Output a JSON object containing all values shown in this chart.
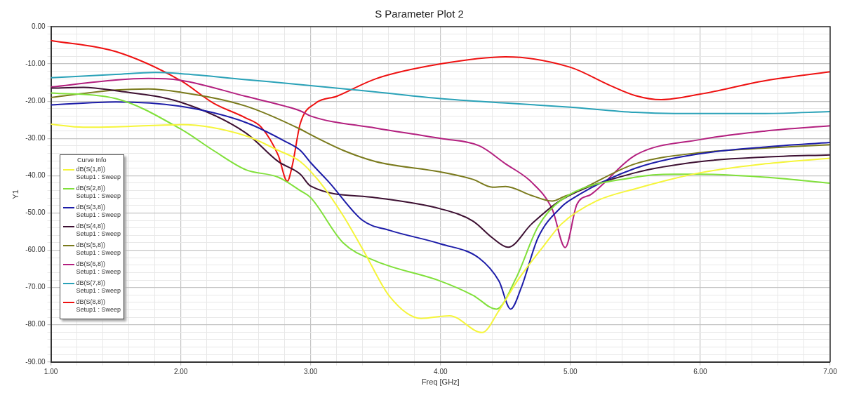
{
  "chart_data": {
    "type": "line",
    "title": "S Parameter Plot 2",
    "xlabel": "Freq [GHz]",
    "ylabel": "Y1",
    "legend_title": "Curve Info",
    "legend": "left",
    "grid": true,
    "marker": "none",
    "line_style": "solid",
    "xlim": [
      1,
      7
    ],
    "xticks": [
      {
        "value": 1,
        "label": "1.00"
      },
      {
        "value": 1.2,
        "label": null
      },
      {
        "value": 1.4,
        "label": null
      },
      {
        "value": 1.6,
        "label": null
      },
      {
        "value": 1.8,
        "label": null
      },
      {
        "value": 2,
        "label": "2.00"
      },
      {
        "value": 2.2,
        "label": null
      },
      {
        "value": 2.4,
        "label": null
      },
      {
        "value": 2.6,
        "label": null
      },
      {
        "value": 2.8,
        "label": null
      },
      {
        "value": 3,
        "label": "3.00"
      },
      {
        "value": 3.2,
        "label": null
      },
      {
        "value": 3.4,
        "label": null
      },
      {
        "value": 3.6,
        "label": null
      },
      {
        "value": 3.8,
        "label": null
      },
      {
        "value": 4,
        "label": "4.00"
      },
      {
        "value": 4.2,
        "label": null
      },
      {
        "value": 4.4,
        "label": null
      },
      {
        "value": 4.6,
        "label": null
      },
      {
        "value": 4.8,
        "label": null
      },
      {
        "value": 5,
        "label": "5.00"
      },
      {
        "value": 5.2,
        "label": null
      },
      {
        "value": 5.4,
        "label": null
      },
      {
        "value": 5.6,
        "label": null
      },
      {
        "value": 5.8,
        "label": null
      },
      {
        "value": 6,
        "label": "6.00"
      },
      {
        "value": 6.2,
        "label": null
      },
      {
        "value": 6.4,
        "label": null
      },
      {
        "value": 6.6,
        "label": null
      },
      {
        "value": 6.8,
        "label": null
      },
      {
        "value": 7,
        "label": "7.00"
      }
    ],
    "ylim": [
      -90,
      0
    ],
    "yticks": [
      {
        "value": -90,
        "label": "-90.00"
      },
      {
        "value": -88,
        "label": null
      },
      {
        "value": -86,
        "label": null
      },
      {
        "value": -84,
        "label": null
      },
      {
        "value": -82,
        "label": null
      },
      {
        "value": -80,
        "label": "-80.00"
      },
      {
        "value": -78,
        "label": null
      },
      {
        "value": -76,
        "label": null
      },
      {
        "value": -74,
        "label": null
      },
      {
        "value": -72,
        "label": null
      },
      {
        "value": -70,
        "label": "-70.00"
      },
      {
        "value": -68,
        "label": null
      },
      {
        "value": -66,
        "label": null
      },
      {
        "value": -64,
        "label": null
      },
      {
        "value": -62,
        "label": null
      },
      {
        "value": -60,
        "label": "-60.00"
      },
      {
        "value": -58,
        "label": null
      },
      {
        "value": -56,
        "label": null
      },
      {
        "value": -54,
        "label": null
      },
      {
        "value": -52,
        "label": null
      },
      {
        "value": -50,
        "label": "-50.00"
      },
      {
        "value": -48,
        "label": null
      },
      {
        "value": -46,
        "label": null
      },
      {
        "value": -44,
        "label": null
      },
      {
        "value": -42,
        "label": null
      },
      {
        "value": -40,
        "label": "-40.00"
      },
      {
        "value": -38,
        "label": null
      },
      {
        "value": -36,
        "label": null
      },
      {
        "value": -34,
        "label": null
      },
      {
        "value": -32,
        "label": null
      },
      {
        "value": -30,
        "label": "-30.00"
      },
      {
        "value": -28,
        "label": null
      },
      {
        "value": -26,
        "label": null
      },
      {
        "value": -24,
        "label": null
      },
      {
        "value": -22,
        "label": null
      },
      {
        "value": -20,
        "label": "-20.00"
      },
      {
        "value": -18,
        "label": null
      },
      {
        "value": -16,
        "label": null
      },
      {
        "value": -14,
        "label": null
      },
      {
        "value": -12,
        "label": null
      },
      {
        "value": -10,
        "label": "-10.00"
      },
      {
        "value": -8,
        "label": null
      },
      {
        "value": -6,
        "label": null
      },
      {
        "value": -4,
        "label": null
      },
      {
        "value": -2,
        "label": null
      },
      {
        "value": 0,
        "label": "0.00"
      }
    ],
    "series": [
      {
        "name": "dB(S(1,8))\nSetup1 : Sweep",
        "color": "#f5f53a",
        "x": [
          1,
          1.25,
          1.5,
          2,
          2.5,
          2.75,
          2.92,
          3.07,
          3.25,
          3.41,
          3.61,
          3.85,
          4.07,
          4.32,
          4.45,
          4.59,
          4.8,
          4.93,
          5.2,
          5.5,
          6,
          6.5,
          7
        ],
        "values": [
          -26.2,
          -27,
          -26.9,
          -26.3,
          -29.3,
          -33.2,
          -36.2,
          -41.7,
          -50.7,
          -60.3,
          -72.5,
          -78.3,
          -77.6,
          -82.1,
          -76.2,
          -68.3,
          -58.6,
          -53,
          -46.8,
          -43.5,
          -39.2,
          -36.8,
          -35.3
        ]
      },
      {
        "name": "dB(S(2,8))\nSetup1 : Sweep",
        "color": "#80e03a",
        "x": [
          1,
          1.5,
          2,
          2.25,
          2.5,
          2.75,
          2.92,
          3,
          3.25,
          3.5,
          4,
          4.25,
          4.43,
          4.58,
          4.75,
          4.93,
          5.5,
          5.8,
          6,
          6.5,
          7
        ],
        "values": [
          -17.8,
          -19.3,
          -27.5,
          -33.2,
          -38.4,
          -40.4,
          -44,
          -45.9,
          -58,
          -62.9,
          -68.3,
          -72.1,
          -75.8,
          -67.6,
          -53.7,
          -46.5,
          -40.4,
          -39.6,
          -39.6,
          -40.4,
          -42
        ]
      },
      {
        "name": "dB(S(3,8))\nSetup1 : Sweep",
        "color": "#1c1ca8",
        "x": [
          1,
          1.5,
          2,
          2.5,
          2.81,
          2.92,
          3,
          3.14,
          3.4,
          3.61,
          4,
          4.3,
          4.45,
          4.54,
          4.62,
          4.75,
          4.93,
          5,
          5.5,
          6,
          6.5,
          7
        ],
        "values": [
          -21,
          -20.2,
          -21.4,
          -25.7,
          -30.9,
          -33.2,
          -36.5,
          -41.7,
          -52,
          -54.7,
          -58.3,
          -62.2,
          -68.3,
          -75.8,
          -70.2,
          -56.7,
          -48.4,
          -46.5,
          -38,
          -34.1,
          -32.3,
          -31.1
        ]
      },
      {
        "name": "dB(S(4,8))\nSetup1 : Sweep",
        "color": "#3d1032",
        "x": [
          1,
          1.25,
          1.5,
          2,
          2.5,
          2.75,
          2.92,
          3,
          3.5,
          4,
          4.25,
          4.4,
          4.52,
          4.7,
          4.93,
          5.5,
          6,
          6.5,
          7
        ],
        "values": [
          -16.5,
          -16.3,
          -17.2,
          -20.3,
          -28.5,
          -36.2,
          -39.6,
          -42.8,
          -45.9,
          -48.9,
          -52.2,
          -56.7,
          -59.2,
          -53,
          -46.5,
          -39.2,
          -36.2,
          -35,
          -34.4
        ]
      },
      {
        "name": "dB(S(5,8))\nSetup1 : Sweep",
        "color": "#7a7a1c",
        "x": [
          1,
          1.5,
          1.75,
          2,
          2.5,
          2.92,
          3,
          3.25,
          3.5,
          4,
          4.25,
          4.4,
          4.5,
          4.7,
          4.86,
          4.95,
          5,
          5.5,
          6,
          6.5,
          7
        ],
        "values": [
          -19,
          -17,
          -16.7,
          -17.6,
          -21.3,
          -27.5,
          -29,
          -33.2,
          -36.2,
          -39,
          -41,
          -43.1,
          -42.9,
          -45.3,
          -46.8,
          -45.6,
          -45,
          -36.8,
          -33.8,
          -32.6,
          -31.7
        ]
      },
      {
        "name": "dB(S(6,8))\nSetup1 : Sweep",
        "color": "#b3207f",
        "x": [
          1,
          1.5,
          1.75,
          2,
          2.5,
          2.81,
          2.92,
          3,
          3.5,
          4,
          4.3,
          4.5,
          4.7,
          4.86,
          4.96,
          5.05,
          5.16,
          5.5,
          6,
          6.5,
          7
        ],
        "values": [
          -16.2,
          -14.3,
          -13.9,
          -14.4,
          -18.7,
          -21.4,
          -22.6,
          -24,
          -27.2,
          -30,
          -32,
          -36.8,
          -41.7,
          -49,
          -59.3,
          -47.7,
          -45,
          -34.5,
          -30.3,
          -28,
          -26.6
        ]
      },
      {
        "name": "dB(S(7,8))\nSetup1 : Sweep",
        "color": "#2aa2b8",
        "x": [
          1,
          1.5,
          1.8,
          2,
          2.5,
          3,
          3.5,
          4,
          4.5,
          5,
          5.5,
          5.8,
          6,
          6.5,
          7
        ],
        "values": [
          -13.7,
          -12.8,
          -12.3,
          -12.6,
          -14.2,
          -15.8,
          -17.5,
          -19.3,
          -20.5,
          -21.6,
          -23,
          -23.3,
          -23.3,
          -23.3,
          -22.8
        ]
      },
      {
        "name": "dB(S(8,8))\nSetup1 : Sweep",
        "color": "#ee1111",
        "x": [
          1,
          1.5,
          2,
          2.25,
          2.5,
          2.62,
          2.75,
          2.82,
          2.86,
          2.92,
          3.04,
          3.2,
          3.5,
          4,
          4.5,
          5,
          5.3,
          5.5,
          5.7,
          6,
          6.5,
          7
        ],
        "values": [
          -3.7,
          -6.7,
          -14.5,
          -20.5,
          -24.5,
          -27,
          -34.5,
          -41.5,
          -37,
          -26,
          -20.5,
          -18.7,
          -14,
          -10,
          -8.1,
          -10.9,
          -15.7,
          -18.5,
          -19.6,
          -18.1,
          -14.5,
          -12.1
        ]
      }
    ]
  }
}
